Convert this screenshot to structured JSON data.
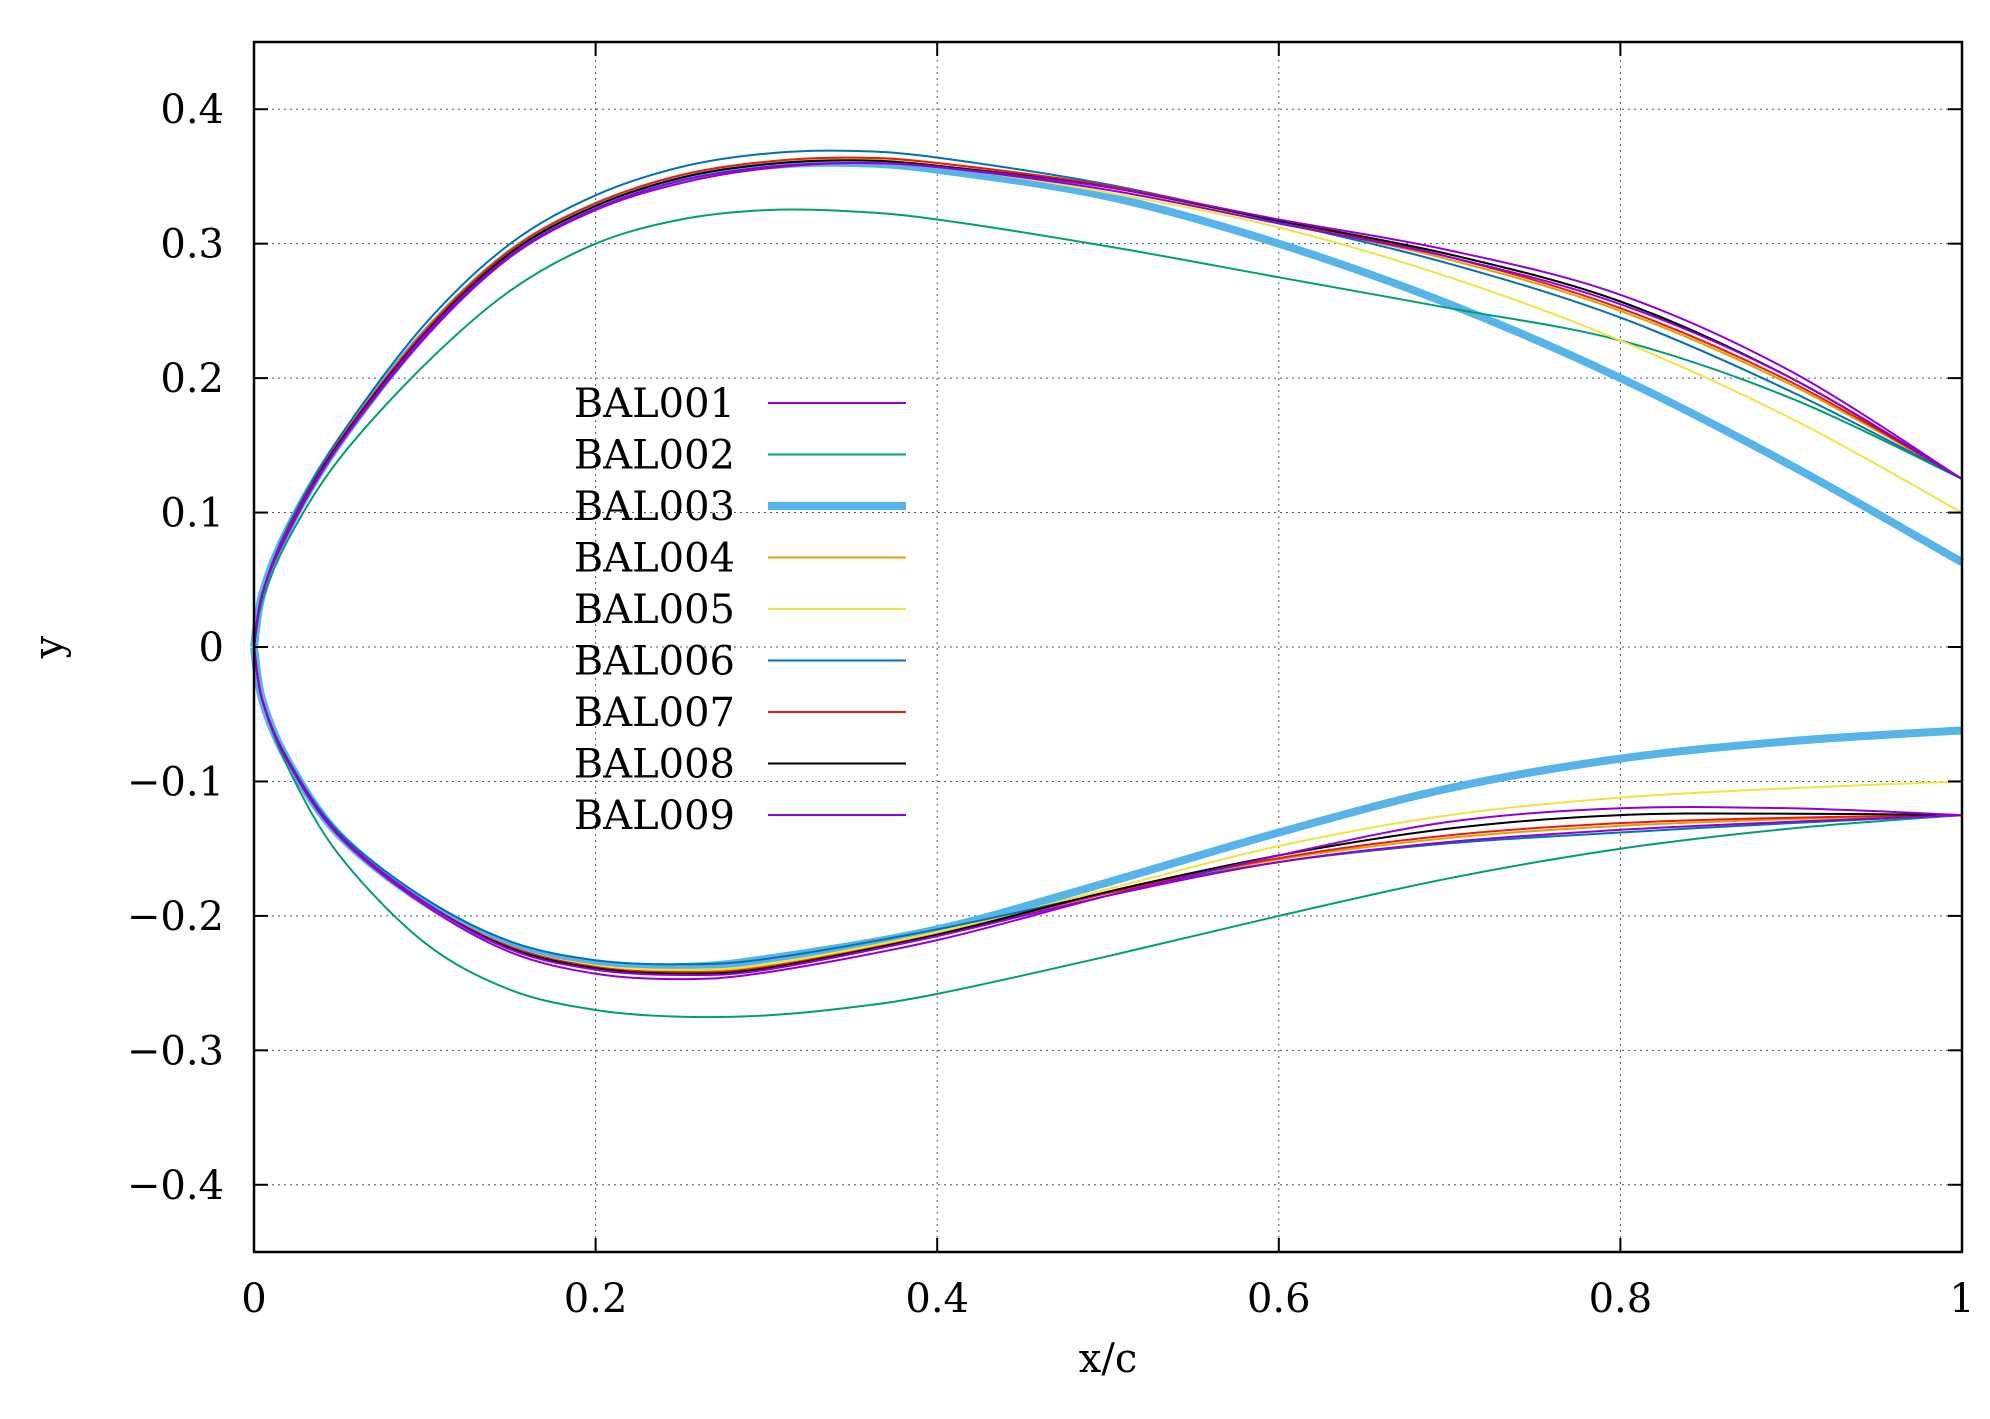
{
  "chart_data": {
    "type": "line",
    "title": "",
    "xlabel": "x/c",
    "ylabel": "y",
    "xlim": [
      0,
      1
    ],
    "ylim": [
      -0.45,
      0.45
    ],
    "x_ticks": [
      0,
      0.2,
      0.4,
      0.6,
      0.8,
      1
    ],
    "x_tick_labels": [
      "0",
      "0.2",
      "0.4",
      "0.6",
      "0.8",
      "1"
    ],
    "y_ticks": [
      -0.4,
      -0.3,
      -0.2,
      -0.1,
      0,
      0.1,
      0.2,
      0.3,
      0.4
    ],
    "y_tick_labels": [
      "−0.4",
      "−0.3",
      "−0.2",
      "−0.1",
      "0",
      "0.1",
      "0.2",
      "0.3",
      "0.4"
    ],
    "grid": true,
    "legend_position": "center-left",
    "series": [
      {
        "name": "BAL001",
        "color": "#9400d3",
        "width": 2,
        "upper": [
          [
            0,
            0
          ],
          [
            0.005,
            0.04
          ],
          [
            0.02,
            0.085
          ],
          [
            0.05,
            0.15
          ],
          [
            0.1,
            0.23
          ],
          [
            0.15,
            0.29
          ],
          [
            0.2,
            0.325
          ],
          [
            0.25,
            0.345
          ],
          [
            0.3,
            0.356
          ],
          [
            0.35,
            0.36
          ],
          [
            0.4,
            0.357
          ],
          [
            0.5,
            0.34
          ],
          [
            0.6,
            0.315
          ],
          [
            0.7,
            0.29
          ],
          [
            0.8,
            0.255
          ],
          [
            0.9,
            0.2
          ],
          [
            1,
            0.125
          ]
        ],
        "lower": [
          [
            0,
            0
          ],
          [
            0.005,
            -0.04
          ],
          [
            0.02,
            -0.085
          ],
          [
            0.05,
            -0.14
          ],
          [
            0.1,
            -0.19
          ],
          [
            0.15,
            -0.225
          ],
          [
            0.2,
            -0.24
          ],
          [
            0.25,
            -0.244
          ],
          [
            0.3,
            -0.24
          ],
          [
            0.4,
            -0.215
          ],
          [
            0.5,
            -0.185
          ],
          [
            0.6,
            -0.16
          ],
          [
            0.7,
            -0.145
          ],
          [
            0.8,
            -0.136
          ],
          [
            0.9,
            -0.13
          ],
          [
            1,
            -0.125
          ]
        ]
      },
      {
        "name": "BAL002",
        "color": "#009e73",
        "width": 2,
        "upper": [
          [
            0,
            0
          ],
          [
            0.005,
            0.035
          ],
          [
            0.02,
            0.08
          ],
          [
            0.05,
            0.14
          ],
          [
            0.1,
            0.21
          ],
          [
            0.15,
            0.265
          ],
          [
            0.2,
            0.3
          ],
          [
            0.25,
            0.318
          ],
          [
            0.3,
            0.325
          ],
          [
            0.35,
            0.324
          ],
          [
            0.4,
            0.318
          ],
          [
            0.5,
            0.298
          ],
          [
            0.6,
            0.275
          ],
          [
            0.7,
            0.252
          ],
          [
            0.8,
            0.228
          ],
          [
            0.9,
            0.185
          ],
          [
            1,
            0.125
          ]
        ],
        "lower": [
          [
            0,
            0
          ],
          [
            0.005,
            -0.04
          ],
          [
            0.02,
            -0.09
          ],
          [
            0.05,
            -0.155
          ],
          [
            0.1,
            -0.22
          ],
          [
            0.15,
            -0.255
          ],
          [
            0.2,
            -0.27
          ],
          [
            0.25,
            -0.275
          ],
          [
            0.3,
            -0.274
          ],
          [
            0.35,
            -0.268
          ],
          [
            0.4,
            -0.258
          ],
          [
            0.5,
            -0.23
          ],
          [
            0.6,
            -0.2
          ],
          [
            0.7,
            -0.172
          ],
          [
            0.8,
            -0.15
          ],
          [
            0.9,
            -0.135
          ],
          [
            1,
            -0.125
          ]
        ]
      },
      {
        "name": "BAL003",
        "color": "#56b4e9",
        "width": 8,
        "upper": [
          [
            0,
            0
          ],
          [
            0.005,
            0.04
          ],
          [
            0.02,
            0.088
          ],
          [
            0.05,
            0.152
          ],
          [
            0.1,
            0.233
          ],
          [
            0.15,
            0.293
          ],
          [
            0.2,
            0.328
          ],
          [
            0.25,
            0.348
          ],
          [
            0.3,
            0.358
          ],
          [
            0.35,
            0.36
          ],
          [
            0.4,
            0.355
          ],
          [
            0.5,
            0.335
          ],
          [
            0.6,
            0.3
          ],
          [
            0.7,
            0.255
          ],
          [
            0.8,
            0.2
          ],
          [
            0.9,
            0.135
          ],
          [
            1,
            0.063
          ]
        ],
        "lower": [
          [
            0,
            0
          ],
          [
            0.005,
            -0.04
          ],
          [
            0.02,
            -0.085
          ],
          [
            0.05,
            -0.14
          ],
          [
            0.1,
            -0.19
          ],
          [
            0.15,
            -0.222
          ],
          [
            0.2,
            -0.236
          ],
          [
            0.25,
            -0.238
          ],
          [
            0.3,
            -0.232
          ],
          [
            0.4,
            -0.21
          ],
          [
            0.5,
            -0.175
          ],
          [
            0.6,
            -0.138
          ],
          [
            0.7,
            -0.105
          ],
          [
            0.8,
            -0.083
          ],
          [
            0.9,
            -0.07
          ],
          [
            1,
            -0.062
          ]
        ]
      },
      {
        "name": "BAL004",
        "color": "#e69f00",
        "width": 2,
        "upper": [
          [
            0,
            0
          ],
          [
            0.005,
            0.04
          ],
          [
            0.02,
            0.088
          ],
          [
            0.05,
            0.153
          ],
          [
            0.1,
            0.235
          ],
          [
            0.15,
            0.295
          ],
          [
            0.2,
            0.33
          ],
          [
            0.25,
            0.351
          ],
          [
            0.3,
            0.361
          ],
          [
            0.35,
            0.364
          ],
          [
            0.4,
            0.36
          ],
          [
            0.5,
            0.342
          ],
          [
            0.6,
            0.316
          ],
          [
            0.7,
            0.288
          ],
          [
            0.8,
            0.25
          ],
          [
            0.9,
            0.195
          ],
          [
            1,
            0.125
          ]
        ],
        "lower": [
          [
            0,
            0
          ],
          [
            0.005,
            -0.04
          ],
          [
            0.02,
            -0.085
          ],
          [
            0.05,
            -0.14
          ],
          [
            0.1,
            -0.19
          ],
          [
            0.15,
            -0.223
          ],
          [
            0.2,
            -0.238
          ],
          [
            0.25,
            -0.241
          ],
          [
            0.3,
            -0.237
          ],
          [
            0.4,
            -0.213
          ],
          [
            0.5,
            -0.183
          ],
          [
            0.6,
            -0.158
          ],
          [
            0.7,
            -0.142
          ],
          [
            0.8,
            -0.133
          ],
          [
            0.9,
            -0.128
          ],
          [
            1,
            -0.125
          ]
        ]
      },
      {
        "name": "BAL005",
        "color": "#f0e442",
        "width": 2,
        "upper": [
          [
            0,
            0
          ],
          [
            0.005,
            0.04
          ],
          [
            0.02,
            0.088
          ],
          [
            0.05,
            0.153
          ],
          [
            0.1,
            0.235
          ],
          [
            0.15,
            0.295
          ],
          [
            0.2,
            0.33
          ],
          [
            0.25,
            0.351
          ],
          [
            0.3,
            0.361
          ],
          [
            0.35,
            0.363
          ],
          [
            0.4,
            0.358
          ],
          [
            0.5,
            0.338
          ],
          [
            0.6,
            0.312
          ],
          [
            0.7,
            0.275
          ],
          [
            0.8,
            0.228
          ],
          [
            0.9,
            0.17
          ],
          [
            1,
            0.1
          ]
        ],
        "lower": [
          [
            0,
            0
          ],
          [
            0.005,
            -0.04
          ],
          [
            0.02,
            -0.085
          ],
          [
            0.05,
            -0.14
          ],
          [
            0.1,
            -0.19
          ],
          [
            0.15,
            -0.223
          ],
          [
            0.2,
            -0.237
          ],
          [
            0.25,
            -0.24
          ],
          [
            0.3,
            -0.236
          ],
          [
            0.4,
            -0.212
          ],
          [
            0.5,
            -0.18
          ],
          [
            0.6,
            -0.148
          ],
          [
            0.7,
            -0.125
          ],
          [
            0.8,
            -0.112
          ],
          [
            0.9,
            -0.105
          ],
          [
            1,
            -0.1
          ]
        ]
      },
      {
        "name": "BAL006",
        "color": "#0072b2",
        "width": 2,
        "upper": [
          [
            0,
            0
          ],
          [
            0.005,
            0.04
          ],
          [
            0.02,
            0.09
          ],
          [
            0.05,
            0.156
          ],
          [
            0.1,
            0.24
          ],
          [
            0.15,
            0.3
          ],
          [
            0.2,
            0.336
          ],
          [
            0.25,
            0.357
          ],
          [
            0.3,
            0.367
          ],
          [
            0.35,
            0.369
          ],
          [
            0.4,
            0.364
          ],
          [
            0.5,
            0.344
          ],
          [
            0.6,
            0.316
          ],
          [
            0.7,
            0.285
          ],
          [
            0.8,
            0.245
          ],
          [
            0.9,
            0.19
          ],
          [
            1,
            0.125
          ]
        ],
        "lower": [
          [
            0,
            0
          ],
          [
            0.005,
            -0.04
          ],
          [
            0.02,
            -0.084
          ],
          [
            0.05,
            -0.138
          ],
          [
            0.1,
            -0.187
          ],
          [
            0.15,
            -0.219
          ],
          [
            0.2,
            -0.233
          ],
          [
            0.25,
            -0.236
          ],
          [
            0.3,
            -0.232
          ],
          [
            0.4,
            -0.21
          ],
          [
            0.5,
            -0.183
          ],
          [
            0.6,
            -0.16
          ],
          [
            0.7,
            -0.146
          ],
          [
            0.8,
            -0.138
          ],
          [
            0.9,
            -0.131
          ],
          [
            1,
            -0.125
          ]
        ]
      },
      {
        "name": "BAL007",
        "color": "#e51e10",
        "width": 2,
        "upper": [
          [
            0,
            0
          ],
          [
            0.005,
            0.04
          ],
          [
            0.02,
            0.088
          ],
          [
            0.05,
            0.153
          ],
          [
            0.1,
            0.235
          ],
          [
            0.15,
            0.295
          ],
          [
            0.2,
            0.33
          ],
          [
            0.25,
            0.351
          ],
          [
            0.3,
            0.361
          ],
          [
            0.35,
            0.364
          ],
          [
            0.4,
            0.36
          ],
          [
            0.5,
            0.343
          ],
          [
            0.6,
            0.317
          ],
          [
            0.7,
            0.29
          ],
          [
            0.8,
            0.252
          ],
          [
            0.9,
            0.197
          ],
          [
            1,
            0.125
          ]
        ],
        "lower": [
          [
            0,
            0
          ],
          [
            0.005,
            -0.04
          ],
          [
            0.02,
            -0.085
          ],
          [
            0.05,
            -0.14
          ],
          [
            0.1,
            -0.19
          ],
          [
            0.15,
            -0.223
          ],
          [
            0.2,
            -0.238
          ],
          [
            0.25,
            -0.242
          ],
          [
            0.3,
            -0.238
          ],
          [
            0.4,
            -0.214
          ],
          [
            0.5,
            -0.183
          ],
          [
            0.6,
            -0.157
          ],
          [
            0.7,
            -0.14
          ],
          [
            0.8,
            -0.131
          ],
          [
            0.9,
            -0.127
          ],
          [
            1,
            -0.125
          ]
        ]
      },
      {
        "name": "BAL008",
        "color": "#000000",
        "width": 2,
        "upper": [
          [
            0,
            0
          ],
          [
            0.005,
            0.04
          ],
          [
            0.02,
            0.087
          ],
          [
            0.05,
            0.152
          ],
          [
            0.1,
            0.233
          ],
          [
            0.15,
            0.293
          ],
          [
            0.2,
            0.328
          ],
          [
            0.25,
            0.349
          ],
          [
            0.3,
            0.359
          ],
          [
            0.35,
            0.362
          ],
          [
            0.4,
            0.358
          ],
          [
            0.5,
            0.342
          ],
          [
            0.6,
            0.317
          ],
          [
            0.7,
            0.292
          ],
          [
            0.8,
            0.257
          ],
          [
            0.9,
            0.2
          ],
          [
            1,
            0.125
          ]
        ],
        "lower": [
          [
            0,
            0
          ],
          [
            0.005,
            -0.04
          ],
          [
            0.02,
            -0.085
          ],
          [
            0.05,
            -0.14
          ],
          [
            0.1,
            -0.19
          ],
          [
            0.15,
            -0.224
          ],
          [
            0.2,
            -0.239
          ],
          [
            0.25,
            -0.243
          ],
          [
            0.3,
            -0.239
          ],
          [
            0.4,
            -0.214
          ],
          [
            0.5,
            -0.182
          ],
          [
            0.6,
            -0.155
          ],
          [
            0.7,
            -0.135
          ],
          [
            0.8,
            -0.125
          ],
          [
            0.9,
            -0.124
          ],
          [
            1,
            -0.125
          ]
        ]
      },
      {
        "name": "BAL009",
        "color": "#9400d3",
        "width": 2,
        "upper": [
          [
            0,
            0
          ],
          [
            0.005,
            0.04
          ],
          [
            0.02,
            0.087
          ],
          [
            0.05,
            0.151
          ],
          [
            0.1,
            0.232
          ],
          [
            0.15,
            0.291
          ],
          [
            0.2,
            0.326
          ],
          [
            0.25,
            0.347
          ],
          [
            0.3,
            0.357
          ],
          [
            0.35,
            0.36
          ],
          [
            0.4,
            0.357
          ],
          [
            0.5,
            0.342
          ],
          [
            0.6,
            0.318
          ],
          [
            0.7,
            0.295
          ],
          [
            0.8,
            0.262
          ],
          [
            0.9,
            0.205
          ],
          [
            1,
            0.125
          ]
        ],
        "lower": [
          [
            0,
            0
          ],
          [
            0.005,
            -0.04
          ],
          [
            0.02,
            -0.086
          ],
          [
            0.05,
            -0.141
          ],
          [
            0.1,
            -0.192
          ],
          [
            0.15,
            -0.227
          ],
          [
            0.2,
            -0.243
          ],
          [
            0.25,
            -0.247
          ],
          [
            0.3,
            -0.242
          ],
          [
            0.4,
            -0.218
          ],
          [
            0.5,
            -0.185
          ],
          [
            0.6,
            -0.155
          ],
          [
            0.7,
            -0.13
          ],
          [
            0.8,
            -0.12
          ],
          [
            0.9,
            -0.12
          ],
          [
            1,
            -0.125
          ]
        ]
      }
    ]
  }
}
